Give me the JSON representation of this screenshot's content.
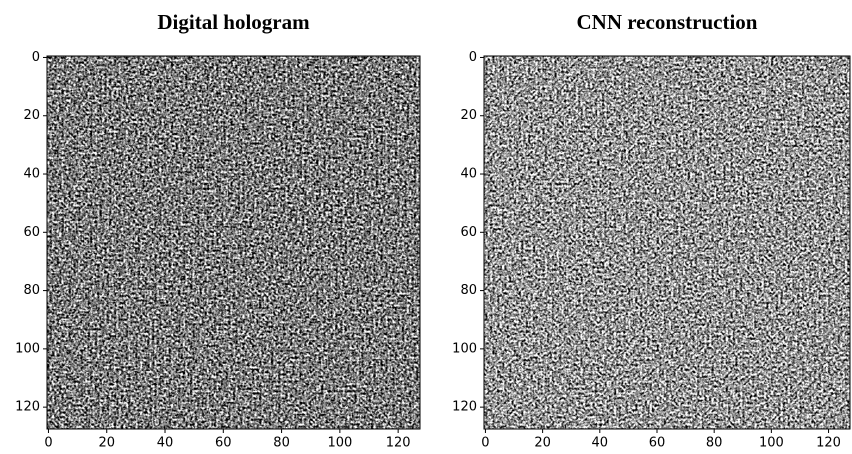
{
  "chart_data": [
    {
      "type": "image",
      "title": "Digital hologram",
      "xlim": [
        -0.5,
        127.5
      ],
      "ylim": [
        127.5,
        -0.5
      ],
      "xticks": [
        0,
        20,
        40,
        60,
        80,
        100,
        120
      ],
      "yticks": [
        0,
        20,
        40,
        60,
        80,
        100,
        120
      ],
      "colormap": "gray"
    },
    {
      "type": "image",
      "title": "CNN reconstruction",
      "xlim": [
        -0.5,
        127.5
      ],
      "ylim": [
        127.5,
        -0.5
      ],
      "xticks": [
        0,
        20,
        40,
        60,
        80,
        100,
        120
      ],
      "yticks": [
        0,
        20,
        40,
        60,
        80,
        100,
        120
      ],
      "colormap": "gray"
    }
  ]
}
